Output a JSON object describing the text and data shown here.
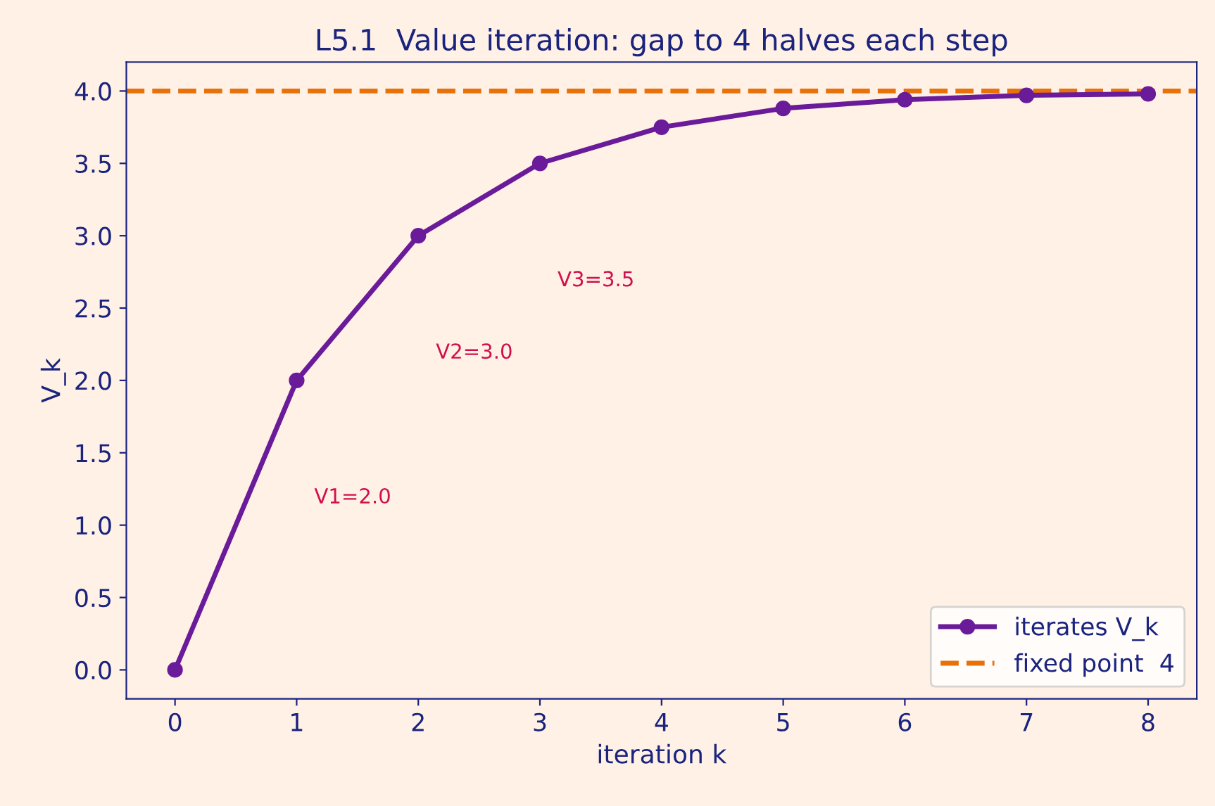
{
  "chart_data": {
    "type": "line",
    "title": "L5.1  Value iteration: gap to 4 halves each step",
    "xlabel": "iteration k",
    "ylabel": "V_k",
    "x": [
      0,
      1,
      2,
      3,
      4,
      5,
      6,
      7,
      8
    ],
    "series": [
      {
        "name": "iterates V_k",
        "color": "#6a1b9a",
        "values": [
          0,
          2,
          3,
          3.5,
          3.75,
          3.88,
          3.94,
          3.97,
          3.98
        ]
      }
    ],
    "marker": "circle",
    "line_style": "solid",
    "ref_lines": [
      {
        "axis": "y",
        "value": 4,
        "label": "fixed point  4",
        "color": "#e8710a",
        "line_style": "dashed"
      }
    ],
    "annotations": [
      "V1=2.0",
      "V2=3.0",
      "V3=3.5"
    ],
    "xlim": [
      -0.4,
      8.4
    ],
    "ylim": [
      -0.2,
      4.2
    ],
    "xticks": [
      0,
      1,
      2,
      3,
      4,
      5,
      6,
      7,
      8
    ],
    "yticks": [
      {
        "value": 0,
        "label": "0.0"
      },
      {
        "value": 0.5,
        "label": "0.5"
      },
      {
        "value": 1,
        "label": "1.0"
      },
      {
        "value": 1.5,
        "label": "1.5"
      },
      {
        "value": 2,
        "label": "2.0"
      },
      {
        "value": 2.5,
        "label": "2.5"
      },
      {
        "value": 3,
        "label": "3.0"
      },
      {
        "value": 3.5,
        "label": "3.5"
      },
      {
        "value": 4,
        "label": "4.0"
      }
    ],
    "grid": false,
    "legend": "bottom right"
  }
}
